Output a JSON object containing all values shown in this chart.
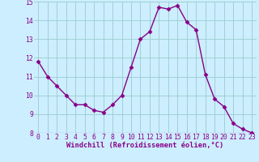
{
  "x": [
    0,
    1,
    2,
    3,
    4,
    5,
    6,
    7,
    8,
    9,
    10,
    11,
    12,
    13,
    14,
    15,
    16,
    17,
    18,
    19,
    20,
    21,
    22,
    23
  ],
  "y": [
    11.8,
    11.0,
    10.5,
    10.0,
    9.5,
    9.5,
    9.2,
    9.1,
    9.5,
    10.0,
    11.5,
    13.0,
    13.4,
    14.7,
    14.6,
    14.8,
    13.9,
    13.5,
    11.1,
    9.8,
    9.4,
    8.5,
    8.2,
    8.0
  ],
  "line_color": "#880088",
  "marker": "D",
  "marker_size": 2.5,
  "bg_color": "#cceeff",
  "grid_color": "#99cccc",
  "xlabel": "Windchill (Refroidissement éolien,°C)",
  "xlim": [
    -0.5,
    23.5
  ],
  "ylim": [
    8,
    15
  ],
  "yticks": [
    8,
    9,
    10,
    11,
    12,
    13,
    14,
    15
  ],
  "xticks": [
    0,
    1,
    2,
    3,
    4,
    5,
    6,
    7,
    8,
    9,
    10,
    11,
    12,
    13,
    14,
    15,
    16,
    17,
    18,
    19,
    20,
    21,
    22,
    23
  ],
  "tick_fontsize": 5.8,
  "xlabel_fontsize": 6.2,
  "linewidth": 1.0
}
